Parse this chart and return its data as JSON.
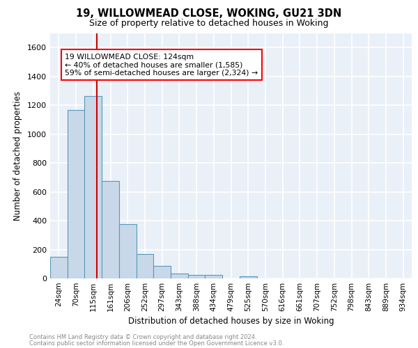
{
  "title_line1": "19, WILLOWMEAD CLOSE, WOKING, GU21 3DN",
  "title_line2": "Size of property relative to detached houses in Woking",
  "xlabel": "Distribution of detached houses by size in Woking",
  "ylabel": "Number of detached properties",
  "bar_color": "#c8d8e8",
  "bar_edge_color": "#5599bb",
  "background_color": "#eaf0f8",
  "grid_color": "white",
  "categories": [
    "24sqm",
    "70sqm",
    "115sqm",
    "161sqm",
    "206sqm",
    "252sqm",
    "297sqm",
    "343sqm",
    "388sqm",
    "434sqm",
    "479sqm",
    "525sqm",
    "570sqm",
    "616sqm",
    "661sqm",
    "707sqm",
    "752sqm",
    "798sqm",
    "843sqm",
    "889sqm",
    "934sqm"
  ],
  "values": [
    148,
    1168,
    1262,
    677,
    375,
    170,
    88,
    36,
    25,
    22,
    0,
    15,
    0,
    0,
    0,
    0,
    0,
    0,
    0,
    0,
    0
  ],
  "ylim": [
    0,
    1700
  ],
  "yticks": [
    0,
    200,
    400,
    600,
    800,
    1000,
    1200,
    1400,
    1600
  ],
  "property_line_x": 2.2,
  "annotation_text_line1": "19 WILLOWMEAD CLOSE: 124sqm",
  "annotation_text_line2": "← 40% of detached houses are smaller (1,585)",
  "annotation_text_line3": "59% of semi-detached houses are larger (2,324) →",
  "red_line_color": "#cc0000",
  "footer_text_line1": "Contains HM Land Registry data © Crown copyright and database right 2024.",
  "footer_text_line2": "Contains public sector information licensed under the Open Government Licence v3.0."
}
